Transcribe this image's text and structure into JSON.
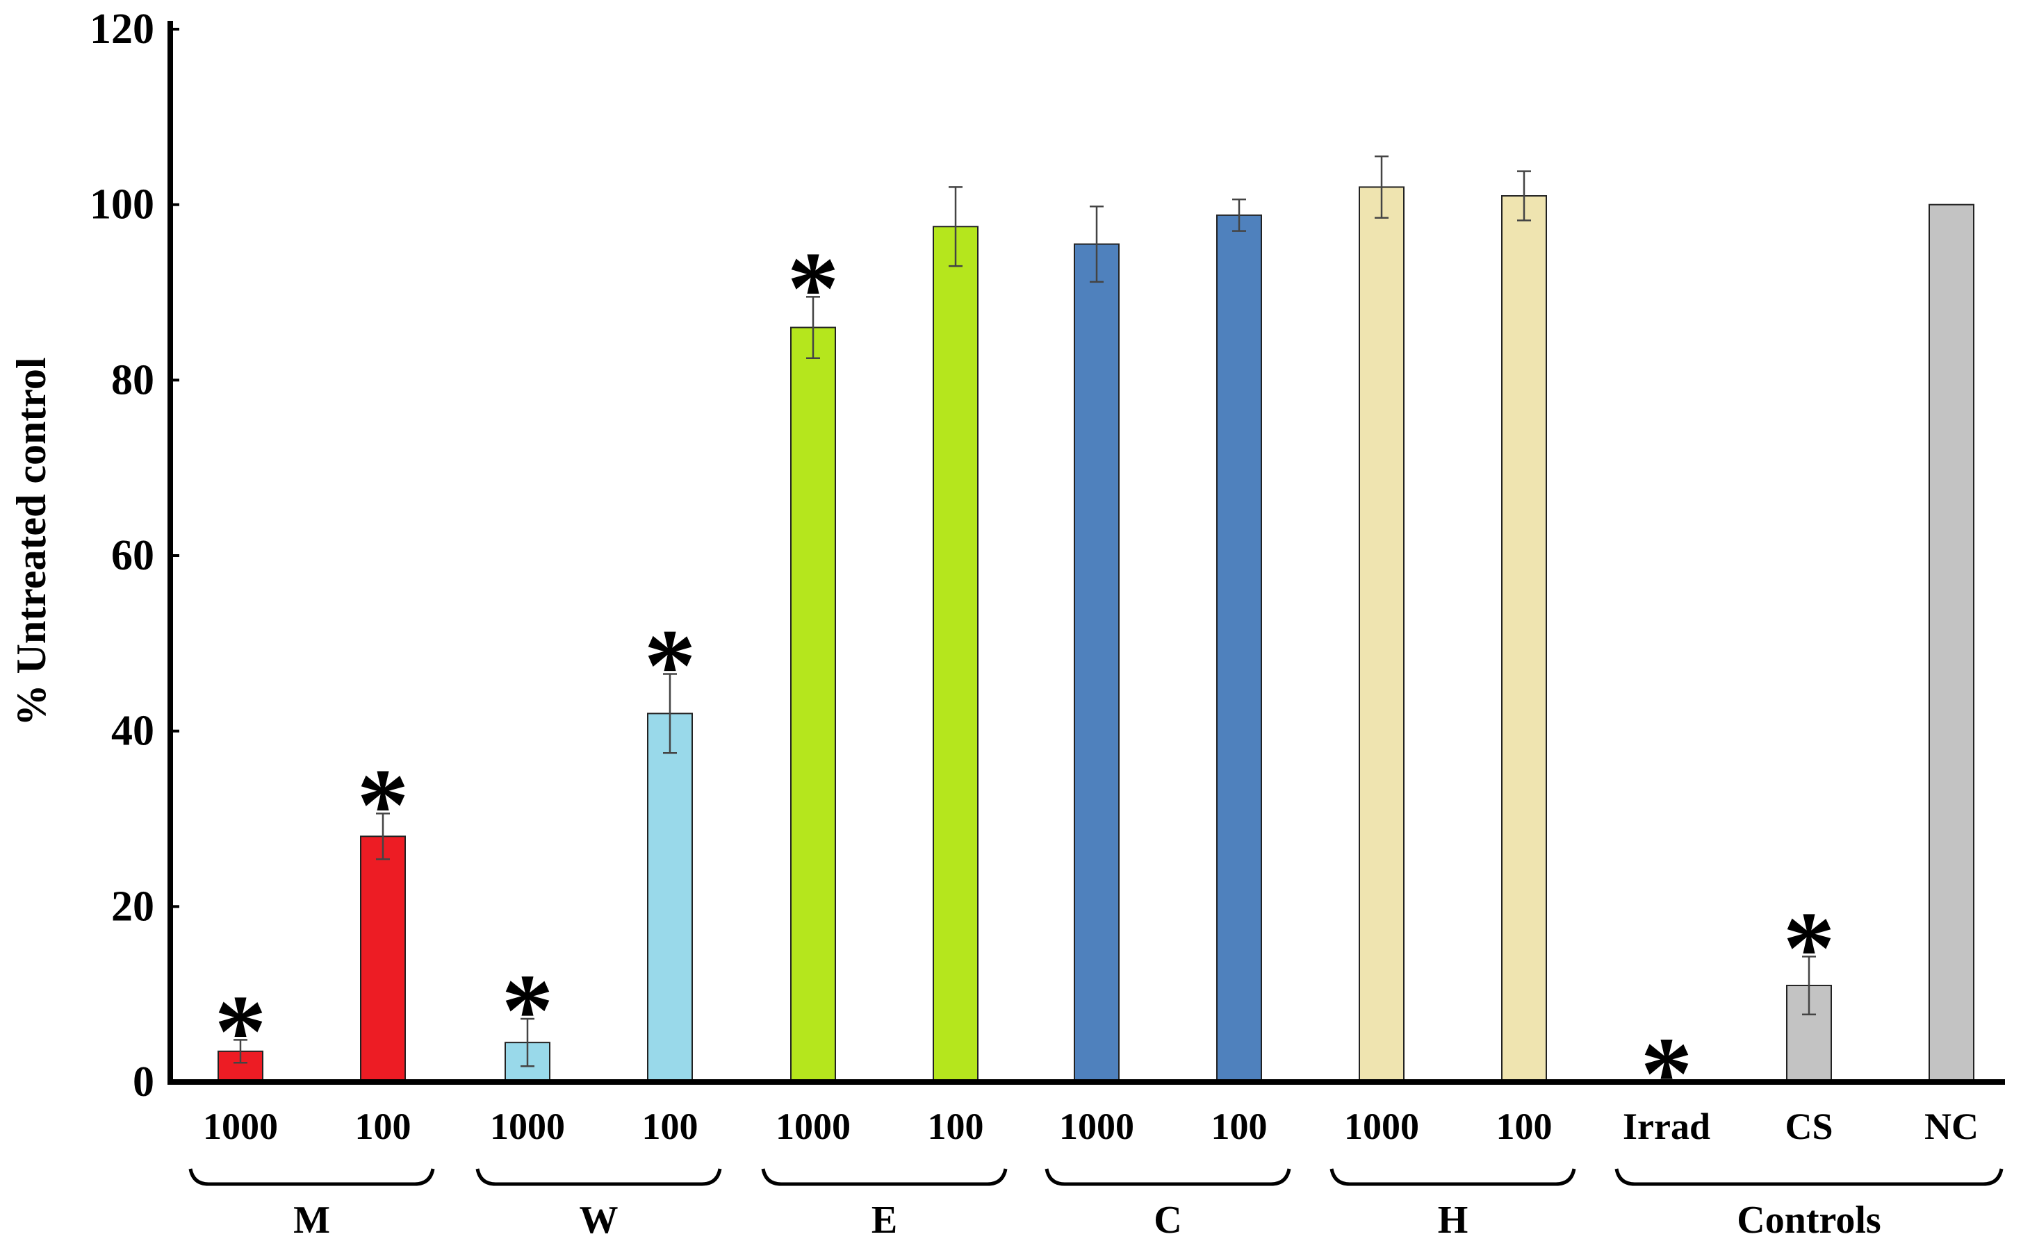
{
  "chart_data": {
    "type": "bar",
    "title": "",
    "xlabel": "",
    "ylabel": "% Untreated control",
    "ylim": [
      0,
      120
    ],
    "yticks": [
      "0",
      "20",
      "40",
      "60",
      "80",
      "100",
      "120"
    ],
    "grid": false,
    "legend": "none",
    "significance_marker": "*",
    "groups": [
      {
        "label": "M",
        "bars": [
          {
            "label": "1000",
            "value": 3.5,
            "error": 1.3,
            "color": "#ed1c24",
            "significant": true
          },
          {
            "label": "100",
            "value": 28,
            "error": 2.6,
            "color": "#ed1c24",
            "significant": true
          }
        ]
      },
      {
        "label": "W",
        "bars": [
          {
            "label": "1000",
            "value": 4.5,
            "error": 2.7,
            "color": "#99d9ea",
            "significant": true
          },
          {
            "label": "100",
            "value": 42,
            "error": 4.5,
            "color": "#99d9ea",
            "significant": true
          }
        ]
      },
      {
        "label": "E",
        "bars": [
          {
            "label": "1000",
            "value": 86,
            "error": 3.5,
            "color": "#b5e61d",
            "significant": true
          },
          {
            "label": "100",
            "value": 97.5,
            "error": 4.5,
            "color": "#b5e61d",
            "significant": false
          }
        ]
      },
      {
        "label": "C",
        "bars": [
          {
            "label": "1000",
            "value": 95.5,
            "error": 4.3,
            "color": "#4f81bd",
            "significant": false
          },
          {
            "label": "100",
            "value": 98.8,
            "error": 1.8,
            "color": "#4f81bd",
            "significant": false
          }
        ]
      },
      {
        "label": "H",
        "bars": [
          {
            "label": "1000",
            "value": 102,
            "error": 3.5,
            "color": "#efe4b0",
            "significant": false
          },
          {
            "label": "100",
            "value": 101,
            "error": 2.8,
            "color": "#efe4b0",
            "significant": false
          }
        ]
      },
      {
        "label": "Controls",
        "bars": [
          {
            "label": "Irrad",
            "value": 0,
            "error": 0,
            "color": "#c3c3c3",
            "significant": true
          },
          {
            "label": "CS",
            "value": 11,
            "error": 3.3,
            "color": "#c3c3c3",
            "significant": true
          },
          {
            "label": "NC",
            "value": 100,
            "error": 0,
            "color": "#c3c3c3",
            "significant": false
          }
        ]
      }
    ]
  }
}
